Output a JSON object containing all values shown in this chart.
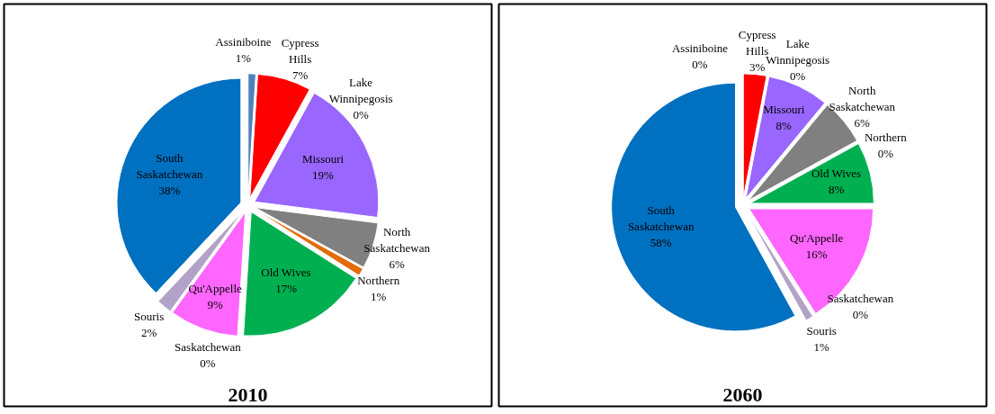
{
  "chart_data": [
    {
      "type": "pie",
      "title": "2010",
      "data_labels": true,
      "categories": [
        "Assiniboine",
        "Cypress Hills",
        "Lake Winnipegosis",
        "Missouri",
        "North Saskatchewan",
        "Northern",
        "Old Wives",
        "Qu'Appelle",
        "Saskatchewan",
        "Souris",
        "South Saskatchewan"
      ],
      "values": [
        1,
        7,
        0,
        19,
        6,
        1,
        17,
        9,
        0,
        2,
        38
      ],
      "value_labels": [
        "1%",
        "7%",
        "0%",
        "19%",
        "6%",
        "1%",
        "17%",
        "9%",
        "0%",
        "2%",
        "38%"
      ],
      "colors": [
        "#4f81bd",
        "#ff0000",
        "#9bbb59",
        "#9966ff",
        "#808080",
        "#e36c09",
        "#00b050",
        "#ff66ff",
        "#c3d69b",
        "#b3a2c7",
        "#0070c0"
      ]
    },
    {
      "type": "pie",
      "title": "2060",
      "data_labels": true,
      "categories": [
        "Assiniboine",
        "Cypress Hills",
        "Lake Winnipegosis",
        "Missouri",
        "North Saskatchewan",
        "Northern",
        "Old Wives",
        "Qu'Appelle",
        "Saskatchewan",
        "Souris",
        "South Saskatchewan"
      ],
      "values": [
        0,
        3,
        0,
        8,
        6,
        0,
        8,
        16,
        0,
        1,
        58
      ],
      "value_labels": [
        "0%",
        "3%",
        "0%",
        "8%",
        "6%",
        "0%",
        "8%",
        "16%",
        "0%",
        "1%",
        "58%"
      ],
      "colors": [
        "#4f81bd",
        "#ff0000",
        "#9bbb59",
        "#9966ff",
        "#808080",
        "#e36c09",
        "#00b050",
        "#ff66ff",
        "#c3d69b",
        "#b3a2c7",
        "#0070c0"
      ]
    }
  ]
}
